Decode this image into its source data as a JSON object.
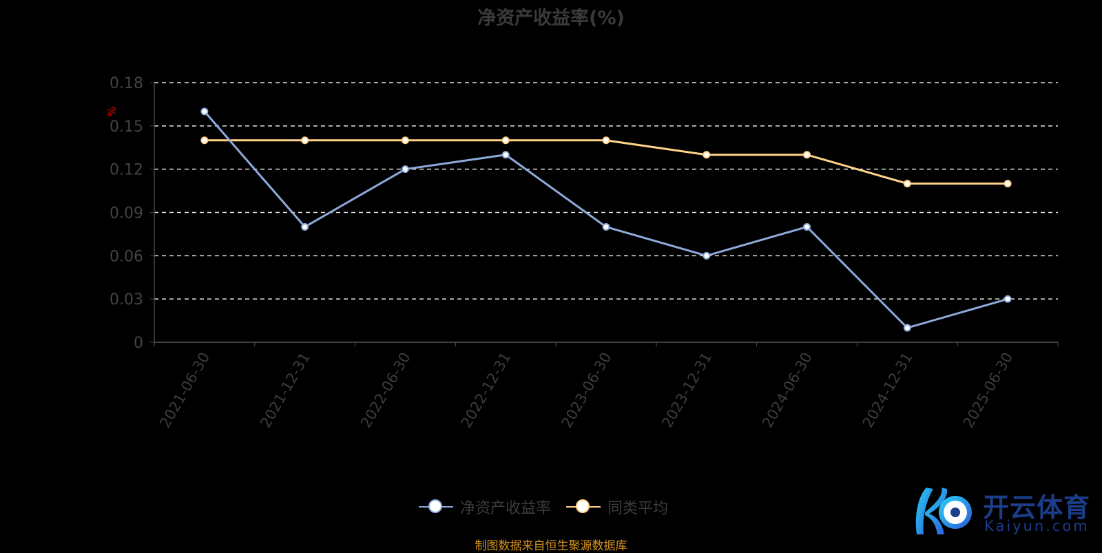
{
  "chart_data": {
    "type": "line",
    "title": "净资产收益率(%)",
    "ylabel": "%",
    "categories": [
      "2021-06-30",
      "2021-12-31",
      "2022-06-30",
      "2022-12-31",
      "2023-06-30",
      "2023-12-31",
      "2024-06-30",
      "2024-12-31",
      "2025-06-30"
    ],
    "yticks": [
      "0",
      "0.03",
      "0.06",
      "0.09",
      "0.12",
      "0.15",
      "0.18"
    ],
    "ylim": [
      0,
      0.18
    ],
    "grid": true,
    "legend_position": "bottom",
    "series": [
      {
        "name": "净资产收益率",
        "color": "#8eaadb",
        "values": [
          0.16,
          0.08,
          0.12,
          0.13,
          0.08,
          0.06,
          0.08,
          0.01,
          0.03
        ]
      },
      {
        "name": "同类平均",
        "color": "#ffd38a",
        "values": [
          0.14,
          0.14,
          0.14,
          0.14,
          0.14,
          0.13,
          0.13,
          0.11,
          0.11
        ]
      }
    ]
  },
  "source": "制图数据来自恒生聚源数据库",
  "watermark": {
    "brand": "开云体育",
    "url": "Kaiyun.com"
  }
}
